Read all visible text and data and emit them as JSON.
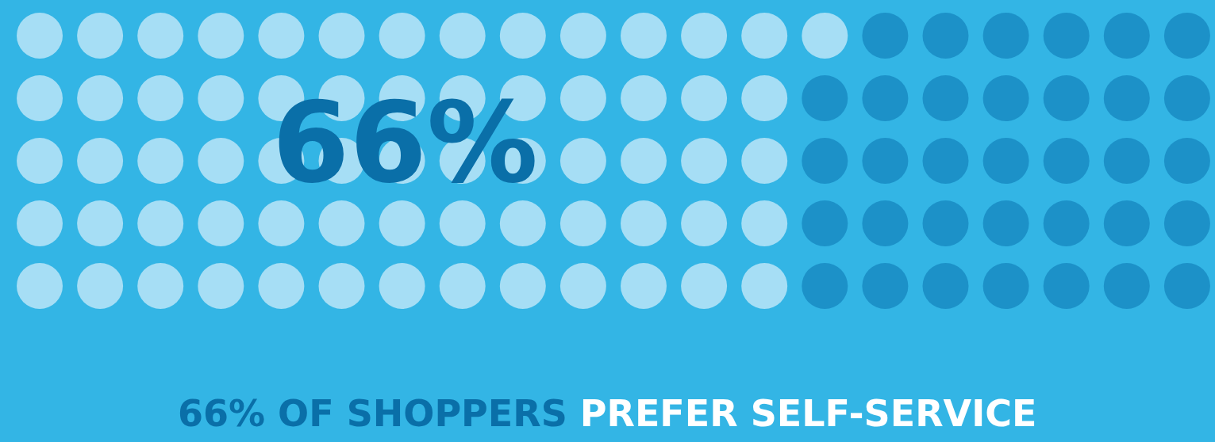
{
  "chart_data": {
    "type": "other",
    "title": "66% OF SHOPPERS",
    "subtitle": "PREFER SELF-SERVICE",
    "values": [
      66
    ],
    "value_labels": [
      "66%"
    ],
    "color": "#a6def5"
  }
}
